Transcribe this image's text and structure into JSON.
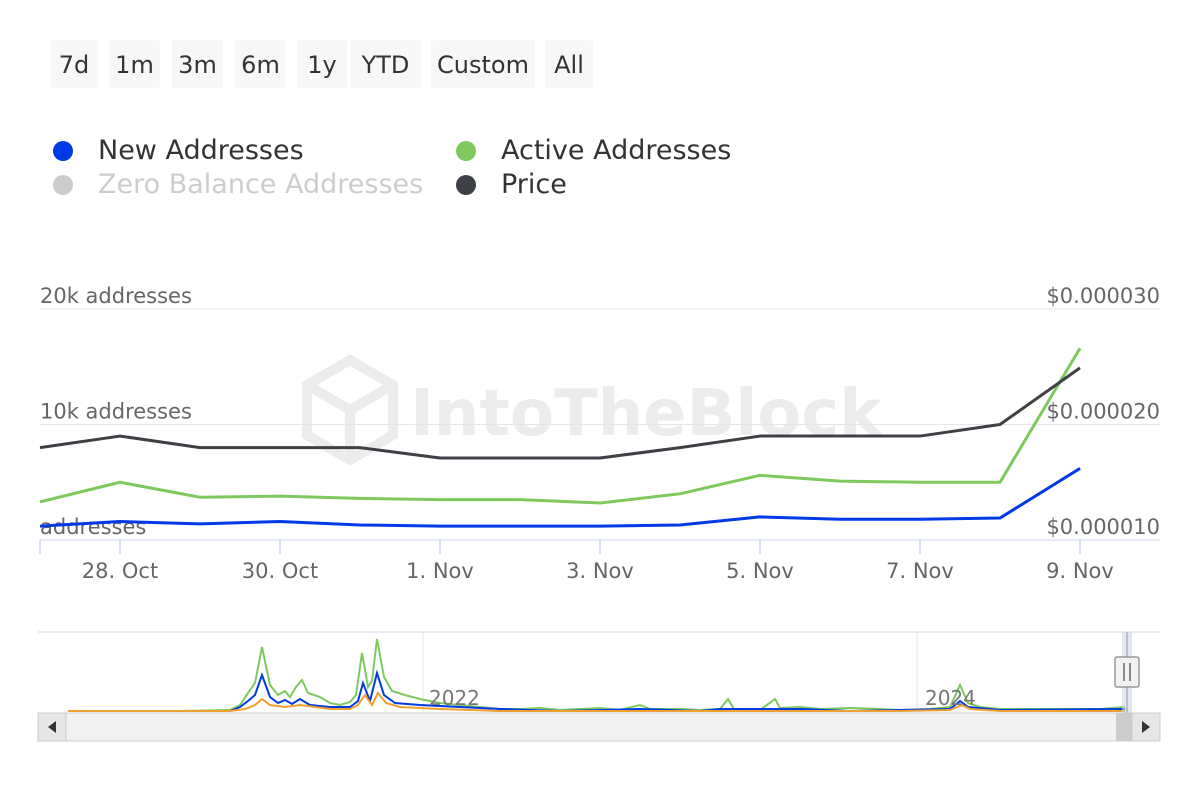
{
  "range_selector": {
    "buttons": [
      {
        "label": "7d"
      },
      {
        "label": "1m"
      },
      {
        "label": "3m"
      },
      {
        "label": "6m"
      },
      {
        "label": "1y"
      },
      {
        "label": "YTD"
      },
      {
        "label": "Custom"
      },
      {
        "label": "All"
      }
    ]
  },
  "legend": {
    "items": [
      {
        "label": "New Addresses",
        "color": "#0039e6",
        "enabled": true
      },
      {
        "label": "Active Addresses",
        "color": "#7dc95e",
        "enabled": true
      },
      {
        "label": "Zero Balance Addresses",
        "color": "#cccccc",
        "enabled": false
      },
      {
        "label": "Price",
        "color": "#3d4145",
        "enabled": true
      }
    ]
  },
  "watermark": "IntoTheBlock",
  "chart_data": {
    "type": "line",
    "x": [
      "2023-10-27",
      "2023-10-28",
      "2023-10-29",
      "2023-10-30",
      "2023-10-31",
      "2023-11-01",
      "2023-11-02",
      "2023-11-03",
      "2023-11-04",
      "2023-11-05",
      "2023-11-06",
      "2023-11-07",
      "2023-11-08",
      "2023-11-09",
      "2023-11-10"
    ],
    "x_tick_labels": [
      "28. Oct",
      "30. Oct",
      "1. Nov",
      "3. Nov",
      "5. Nov",
      "7. Nov",
      "9. Nov"
    ],
    "y_left_tick_labels": [
      "addresses",
      "10k addresses",
      "20k addresses"
    ],
    "y_left_ticks": [
      0,
      10000,
      20000
    ],
    "ylim_left": [
      0,
      20000
    ],
    "y_right_tick_labels": [
      "$0.000010",
      "$0.000020",
      "$0.000030"
    ],
    "y_right_ticks": [
      1e-05,
      2e-05,
      3e-05
    ],
    "ylim_right": [
      1e-05,
      3e-05
    ],
    "grid": true,
    "series": [
      {
        "name": "New Addresses",
        "axis": "left",
        "color": "#0039e6",
        "values": [
          1200,
          1600,
          1400,
          1600,
          1300,
          1200,
          1200,
          1200,
          1300,
          2000,
          1800,
          1800,
          1900,
          6200,
          null
        ]
      },
      {
        "name": "Active Addresses",
        "axis": "left",
        "color": "#7dc95e",
        "values": [
          3300,
          5000,
          3700,
          3800,
          3600,
          3500,
          3500,
          3200,
          4000,
          5600,
          5100,
          5000,
          5000,
          16600,
          null
        ]
      },
      {
        "name": "Price",
        "axis": "right",
        "color": "#3d4145",
        "values": [
          1.8e-05,
          1.9e-05,
          1.8e-05,
          1.8e-05,
          1.8e-05,
          1.71e-05,
          1.71e-05,
          1.71e-05,
          1.8e-05,
          1.9e-05,
          1.9e-05,
          1.9e-05,
          2e-05,
          2.49e-05,
          null
        ]
      }
    ],
    "navigator": {
      "x_tick_labels": [
        "2022",
        "2024"
      ]
    }
  }
}
